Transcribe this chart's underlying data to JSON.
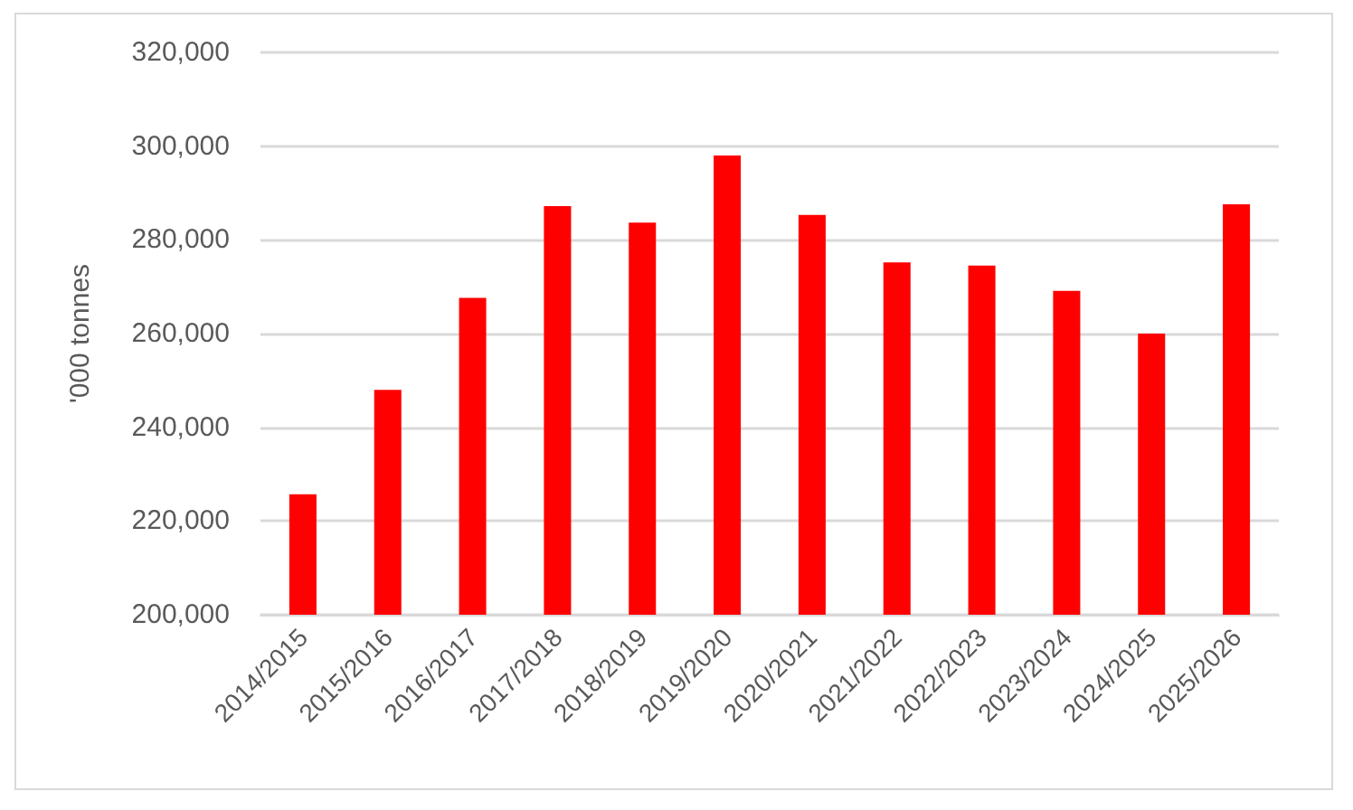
{
  "chart_data": {
    "type": "bar",
    "ylabel": "'000 tonnes",
    "categories": [
      "2014/2015",
      "2015/2016",
      "2016/2017",
      "2017/2018",
      "2018/2019",
      "2019/2020",
      "2020/2021",
      "2021/2022",
      "2022/2023",
      "2023/2024",
      "2024/2025",
      "2025/2026"
    ],
    "values": [
      225700,
      248000,
      267600,
      287200,
      283700,
      298000,
      285300,
      275200,
      274500,
      269100,
      260000,
      287600
    ],
    "color": "#ff0000",
    "ylim": [
      200000,
      320000
    ],
    "yticks": [
      {
        "value": 200000,
        "label": "200,000"
      },
      {
        "value": 220000,
        "label": "220,000"
      },
      {
        "value": 240000,
        "label": "240,000"
      },
      {
        "value": 260000,
        "label": "260,000"
      },
      {
        "value": 280000,
        "label": "280,000"
      },
      {
        "value": 300000,
        "label": "300,000"
      },
      {
        "value": 320000,
        "label": "320,000"
      }
    ],
    "grid": "y"
  }
}
